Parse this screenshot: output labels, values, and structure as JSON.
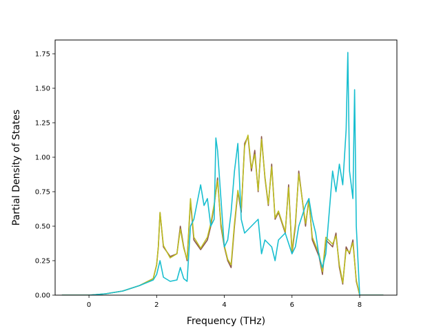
{
  "chart_data": {
    "type": "line",
    "title": "",
    "xlabel": "Frequency (THz)",
    "ylabel": "Partial Density of States",
    "xlim": [
      -1.0,
      9.1
    ],
    "ylim": [
      0.0,
      1.85
    ],
    "xticks": [
      0,
      2,
      4,
      6,
      8
    ],
    "xtick_labels": [
      "0",
      "2",
      "4",
      "6",
      "8"
    ],
    "yticks": [
      0.0,
      0.25,
      0.5,
      0.75,
      1.0,
      1.25,
      1.5,
      1.75
    ],
    "ytick_labels": [
      "0.00",
      "0.25",
      "0.50",
      "0.75",
      "1.00",
      "1.25",
      "1.50",
      "1.75"
    ],
    "grid": false,
    "series": [
      {
        "color": "#8c564b",
        "x": [
          -0.8,
          0.0,
          0.5,
          1.0,
          1.5,
          1.9,
          2.0,
          2.05,
          2.1,
          2.2,
          2.4,
          2.6,
          2.7,
          2.8,
          2.9,
          3.0,
          3.1,
          3.3,
          3.5,
          3.6,
          3.7,
          3.8,
          3.9,
          4.0,
          4.1,
          4.2,
          4.3,
          4.4,
          4.5,
          4.6,
          4.7,
          4.8,
          4.9,
          5.0,
          5.1,
          5.2,
          5.3,
          5.4,
          5.5,
          5.6,
          5.8,
          5.9,
          6.0,
          6.1,
          6.2,
          6.4,
          6.5,
          6.6,
          6.8,
          6.9,
          7.0,
          7.2,
          7.3,
          7.4,
          7.5,
          7.6,
          7.7,
          7.8,
          7.9,
          8.0,
          8.7
        ],
        "y": [
          0.0,
          0.0,
          0.01,
          0.03,
          0.07,
          0.12,
          0.22,
          0.35,
          0.6,
          0.35,
          0.28,
          0.3,
          0.5,
          0.35,
          0.25,
          0.68,
          0.4,
          0.33,
          0.4,
          0.5,
          0.65,
          0.85,
          0.5,
          0.35,
          0.25,
          0.2,
          0.5,
          0.75,
          0.6,
          1.1,
          1.15,
          0.9,
          1.05,
          0.75,
          1.15,
          0.85,
          0.65,
          0.95,
          0.55,
          0.6,
          0.45,
          0.8,
          0.3,
          0.5,
          0.9,
          0.5,
          0.7,
          0.4,
          0.28,
          0.15,
          0.4,
          0.35,
          0.45,
          0.2,
          0.08,
          0.35,
          0.3,
          0.4,
          0.1,
          0.0,
          0.0
        ]
      },
      {
        "color": "#bcbd22",
        "x": [
          -0.8,
          0.0,
          0.5,
          1.0,
          1.5,
          1.9,
          2.0,
          2.05,
          2.1,
          2.2,
          2.4,
          2.6,
          2.7,
          2.8,
          2.9,
          3.0,
          3.1,
          3.3,
          3.5,
          3.6,
          3.7,
          3.8,
          3.9,
          4.0,
          4.1,
          4.2,
          4.3,
          4.4,
          4.5,
          4.6,
          4.7,
          4.8,
          4.9,
          5.0,
          5.1,
          5.2,
          5.3,
          5.4,
          5.5,
          5.6,
          5.8,
          5.9,
          6.0,
          6.1,
          6.2,
          6.4,
          6.5,
          6.6,
          6.8,
          6.9,
          7.0,
          7.2,
          7.3,
          7.4,
          7.5,
          7.6,
          7.7,
          7.8,
          7.9,
          8.0,
          8.7
        ],
        "y": [
          0.0,
          0.0,
          0.01,
          0.03,
          0.07,
          0.12,
          0.22,
          0.35,
          0.6,
          0.36,
          0.27,
          0.3,
          0.48,
          0.34,
          0.26,
          0.7,
          0.42,
          0.34,
          0.42,
          0.52,
          0.66,
          0.83,
          0.52,
          0.36,
          0.26,
          0.22,
          0.52,
          0.76,
          0.62,
          1.08,
          1.16,
          0.92,
          1.02,
          0.76,
          1.13,
          0.86,
          0.66,
          0.93,
          0.56,
          0.61,
          0.46,
          0.78,
          0.32,
          0.52,
          0.88,
          0.52,
          0.68,
          0.42,
          0.3,
          0.17,
          0.42,
          0.37,
          0.43,
          0.22,
          0.09,
          0.33,
          0.31,
          0.38,
          0.11,
          0.0,
          0.0
        ]
      },
      {
        "color": "#17becf",
        "x": [
          -0.8,
          0.0,
          0.5,
          1.0,
          1.5,
          1.9,
          2.0,
          2.1,
          2.2,
          2.4,
          2.6,
          2.7,
          2.8,
          2.9,
          3.0,
          3.1,
          3.3,
          3.4,
          3.5,
          3.6,
          3.7,
          3.75,
          3.8,
          3.9,
          4.0,
          4.1,
          4.2,
          4.3,
          4.4,
          4.5,
          4.6,
          4.8,
          5.0,
          5.1,
          5.2,
          5.4,
          5.5,
          5.6,
          5.8,
          6.0,
          6.1,
          6.2,
          6.4,
          6.5,
          6.6,
          6.7,
          6.8,
          6.9,
          7.0,
          7.1,
          7.2,
          7.3,
          7.4,
          7.5,
          7.6,
          7.65,
          7.7,
          7.8,
          7.85,
          7.9,
          8.0,
          8.7
        ],
        "y": [
          0.0,
          0.0,
          0.01,
          0.03,
          0.07,
          0.11,
          0.15,
          0.25,
          0.13,
          0.1,
          0.11,
          0.2,
          0.12,
          0.1,
          0.5,
          0.55,
          0.8,
          0.65,
          0.7,
          0.5,
          0.55,
          1.14,
          1.05,
          0.7,
          0.35,
          0.4,
          0.6,
          0.9,
          1.1,
          0.55,
          0.45,
          0.5,
          0.55,
          0.3,
          0.4,
          0.35,
          0.25,
          0.4,
          0.45,
          0.3,
          0.35,
          0.5,
          0.65,
          0.7,
          0.55,
          0.45,
          0.28,
          0.2,
          0.3,
          0.6,
          0.9,
          0.75,
          0.95,
          0.8,
          1.2,
          1.76,
          0.9,
          0.7,
          1.49,
          0.5,
          0.0,
          0.0
        ]
      }
    ]
  }
}
